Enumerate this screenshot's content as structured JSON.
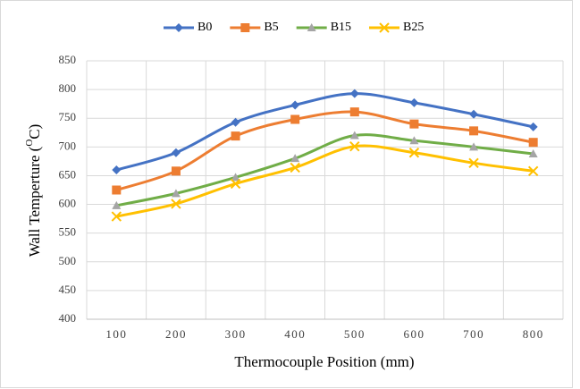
{
  "chart_data": {
    "type": "line",
    "categories": [
      "100",
      "200",
      "300",
      "400",
      "500",
      "600",
      "700",
      "800"
    ],
    "series": [
      {
        "name": "B0",
        "color": "#4472c4",
        "marker": "diamond",
        "marker_color": "#4472c4",
        "values": [
          660,
          690,
          743,
          773,
          793,
          777,
          757,
          735
        ]
      },
      {
        "name": "B5",
        "color": "#ed7d31",
        "marker": "square",
        "marker_color": "#ed7d31",
        "values": [
          625,
          658,
          719,
          748,
          761,
          740,
          728,
          708
        ]
      },
      {
        "name": "B15",
        "color": "#70ad47",
        "marker": "triangle",
        "marker_color": "#a5a5a5",
        "values": [
          598,
          619,
          647,
          680,
          720,
          711,
          700,
          688
        ]
      },
      {
        "name": "B25",
        "color": "#ffc000",
        "marker": "x",
        "marker_color": "#ffc000",
        "values": [
          579,
          601,
          636,
          664,
          701,
          690,
          672,
          658
        ]
      }
    ],
    "x_label": "Thermocouple Position (mm)",
    "y_label": [
      "Wall Temperture (",
      "O",
      "C)"
    ],
    "ylim": [
      400,
      850
    ],
    "yticks": [
      400,
      450,
      500,
      550,
      600,
      650,
      700,
      750,
      800,
      850
    ],
    "grid": true,
    "smooth": true,
    "legend": "top"
  }
}
